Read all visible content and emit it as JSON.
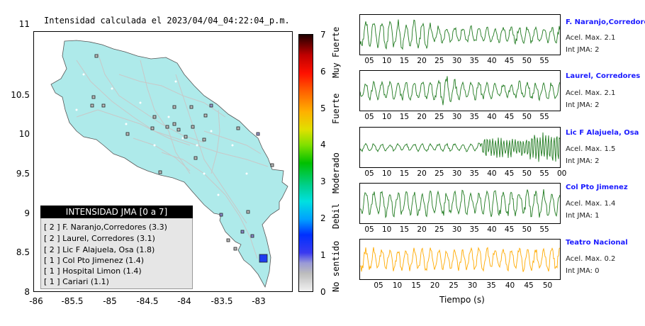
{
  "map": {
    "title": "Intensidad calculada el 2023/04/04_04:22:04_p.m.",
    "y_ticks": [
      "11",
      "10.5",
      "10",
      "9.5",
      "9",
      "8.5",
      "8"
    ],
    "x_ticks": [
      "-86",
      "-85.5",
      "-85",
      "-84.5",
      "-84",
      "-83.5",
      "-83"
    ],
    "land_color": "#aeeaea",
    "road_color": "#c8c8c8"
  },
  "colorbar": {
    "ticks": [
      "0",
      "1",
      "2",
      "3",
      "4",
      "5",
      "6",
      "7"
    ],
    "categories": [
      "No sentido",
      "Debil",
      "Moderado",
      "Fuerte",
      "Muy Fuerte"
    ]
  },
  "legend": {
    "title": "INTENSIDAD JMA [0 a 7]",
    "items": [
      "[ 2 ]  F. Naranjo,Corredores (3.3)",
      "[ 2 ]  Laurel, Corredores (3.1)",
      "[ 2 ]  Lic F Alajuela, Osa (1.8)",
      "[ 1 ]  Col Pto Jimenez (1.4)",
      "[ 1 ]  Hospital Limon (1.4)",
      "[ 1 ]  Cariari (1.1)"
    ]
  },
  "stations": [
    {
      "name": "F. Naranjo,Corredores",
      "acel": "Acel. Max. 2.1",
      "int": "Int JMA: 2",
      "color": "#1f7a1f",
      "ticks": [
        "05",
        "10",
        "15",
        "20",
        "25",
        "30",
        "35",
        "40",
        "45",
        "50",
        "55"
      ]
    },
    {
      "name": "Laurel, Corredores",
      "acel": "Acel. Max. 2.1",
      "int": "Int JMA: 2",
      "color": "#1f7a1f",
      "ticks": [
        "05",
        "10",
        "15",
        "20",
        "25",
        "30",
        "35",
        "40",
        "45",
        "50",
        "55"
      ]
    },
    {
      "name": "Lic F Alajuela, Osa",
      "acel": "Acel. Max. 1.5",
      "int": "Int JMA: 2",
      "color": "#1f7a1f",
      "ticks": [
        "05",
        "10",
        "15",
        "20",
        "25",
        "30",
        "35",
        "40",
        "45",
        "50",
        "55",
        "00"
      ]
    },
    {
      "name": "Col Pto Jimenez",
      "acel": "Acel. Max. 1.4",
      "int": "Int JMA: 1",
      "color": "#1f7a1f",
      "ticks": [
        "05",
        "10",
        "15",
        "20",
        "25",
        "30",
        "35",
        "40",
        "45",
        "50",
        "55"
      ]
    },
    {
      "name": "Teatro Nacional",
      "acel": "Acel. Max. 0.2",
      "int": "Int JMA: 0",
      "color": "#ffaa00",
      "ticks": [
        "05",
        "10",
        "15",
        "20",
        "25",
        "30",
        "35",
        "40",
        "45",
        "50"
      ]
    }
  ],
  "time_axis_label": "Tiempo (s)"
}
